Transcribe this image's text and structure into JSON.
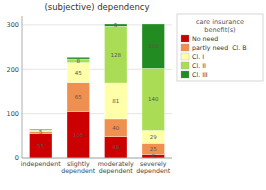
{
  "chart_data": {
    "type": "bar",
    "stacked": true,
    "title": "(subjective) dependency",
    "categories": [
      "independent",
      "slightly\ndependent",
      "moderately\ndependent",
      "severely\ndependent"
    ],
    "series": [
      {
        "name": "No need",
        "color": "#cc0000",
        "values": [
          55,
          105,
          48,
          8
        ],
        "value_labels": [
          "55",
          "105",
          "48",
          "8"
        ]
      },
      {
        "name": "partly need  Cl. B",
        "color": "#f09050",
        "values": [
          5,
          65,
          40,
          25
        ],
        "value_labels": [
          "5",
          "65",
          "40",
          "25"
        ]
      },
      {
        "name": "Cl. I",
        "color": "#ffffaa",
        "values": [
          2,
          45,
          81,
          29
        ],
        "value_labels": [
          null,
          "45",
          "81",
          "29"
        ]
      },
      {
        "name": "Cl. II",
        "color": "#aadd55",
        "values": [
          1,
          8,
          128,
          140
        ],
        "value_labels": [
          null,
          "8",
          "128",
          "140"
        ]
      },
      {
        "name": "Cl. III",
        "color": "#228B22",
        "values": [
          2,
          4,
          5,
          100
        ],
        "value_labels": [
          null,
          null,
          "5",
          "100"
        ]
      }
    ],
    "legend_title": "care insurance\nbenefit(s)",
    "legend": "right",
    "ylim": [
      0,
      320
    ],
    "yticks": [
      0,
      100,
      200,
      300
    ],
    "grid": true,
    "data_labels": true
  }
}
